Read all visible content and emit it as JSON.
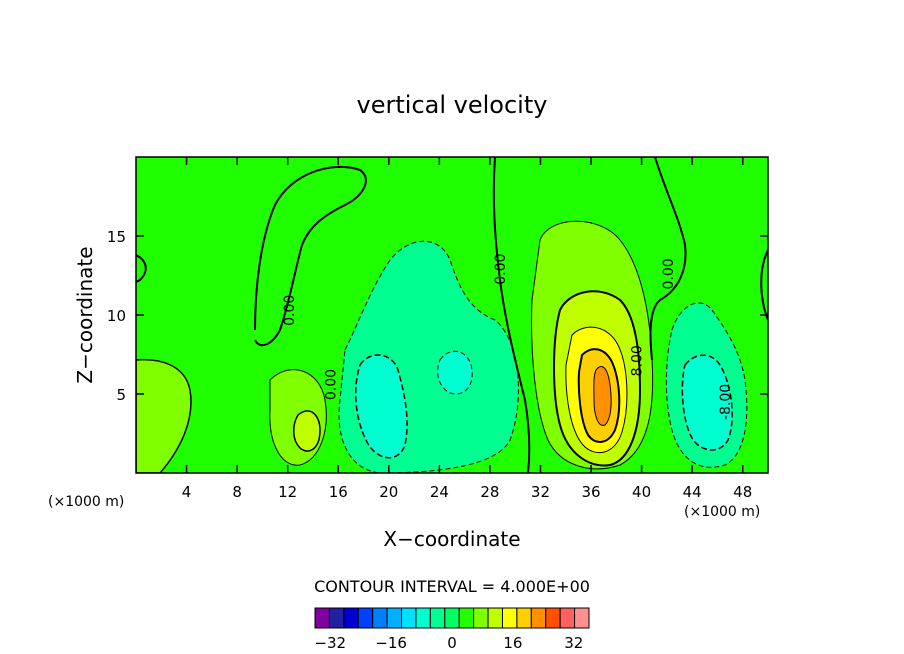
{
  "chart_data": {
    "type": "heatmap",
    "title": "vertical velocity",
    "xlabel": "X−coordinate",
    "ylabel": "Z−coordinate",
    "x_unit_left": "(×1000 m)",
    "x_unit_right": "(×1000 m)",
    "xlim": [
      0,
      50
    ],
    "ylim": [
      0,
      20
    ],
    "x_ticks": [
      4,
      8,
      12,
      16,
      20,
      24,
      28,
      32,
      36,
      40,
      44,
      48
    ],
    "y_ticks": [
      5,
      10,
      15
    ],
    "contour_interval_text": "CONTOUR INTERVAL = 4.000E+00",
    "contour_labels": [
      {
        "text": "0.00",
        "x": 12.5,
        "y": 10.3,
        "rot": -90
      },
      {
        "text": "0.00",
        "x": 15.8,
        "y": 5.6,
        "rot": -90
      },
      {
        "text": "0.00",
        "x": 29.2,
        "y": 12.9,
        "rot": -90
      },
      {
        "text": "8.00",
        "x": 40.0,
        "y": 7.1,
        "rot": -90
      },
      {
        "text": "0.00",
        "x": 42.5,
        "y": 12.6,
        "rot": -90
      },
      {
        "text": "-8.00",
        "x": 47.0,
        "y": 4.5,
        "rot": -90
      }
    ],
    "colorbar": {
      "levels": [
        -36,
        -32,
        -28,
        -24,
        -20,
        -16,
        -12,
        -8,
        -4,
        0,
        4,
        8,
        12,
        16,
        20,
        24,
        28,
        32,
        36
      ],
      "tick_labels": [
        "−32",
        "−16",
        "0",
        "16",
        "32"
      ],
      "tick_values": [
        -32,
        -16,
        0,
        16,
        32
      ],
      "colors": [
        "#8000a0",
        "#2020a0",
        "#0000d0",
        "#0040ff",
        "#0080ff",
        "#00b0ff",
        "#00e0ff",
        "#00ffd0",
        "#00ff90",
        "#00ff60",
        "#20ff00",
        "#80ff00",
        "#c0ff00",
        "#ffff00",
        "#ffd000",
        "#ff9000",
        "#ff5000",
        "#ff6060",
        "#ff9090"
      ]
    },
    "background_color": "#20ff00"
  }
}
